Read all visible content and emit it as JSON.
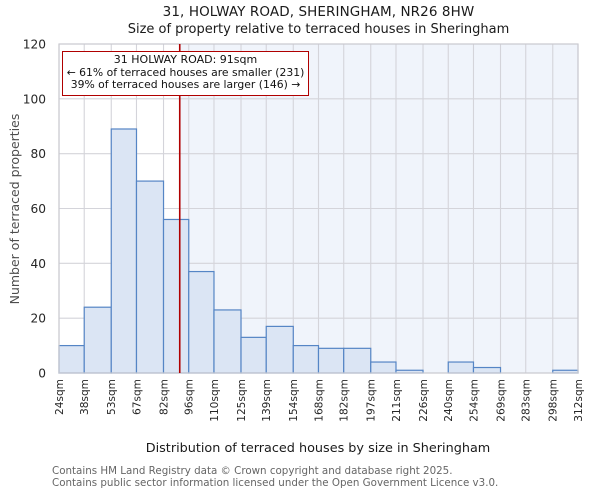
{
  "header": {
    "title": "31, HOLWAY ROAD, SHERINGHAM, NR26 8HW",
    "subtitle": "Size of property relative to terraced houses in Sheringham"
  },
  "annotation": {
    "line1": "31 HOLWAY ROAD: 91sqm",
    "line2": "← 61% of terraced houses are smaller (231)",
    "line3": "39% of terraced houses are larger (146) →"
  },
  "footer": {
    "line1": "Contains HM Land Registry data © Crown copyright and database right 2025.",
    "line2": "Contains public sector information licensed under the Open Government Licence v3.0."
  },
  "chart_data": {
    "type": "bar",
    "title": "31, HOLWAY ROAD, SHERINGHAM, NR26 8HW",
    "subtitle": "Size of property relative to terraced houses in Sheringham",
    "xlabel": "Distribution of terraced houses by size in Sheringham",
    "ylabel": "Number of terraced properties",
    "bin_edges_sqm": [
      24,
      38,
      53,
      67,
      82,
      96,
      110,
      125,
      139,
      154,
      168,
      182,
      197,
      211,
      226,
      240,
      254,
      269,
      283,
      298,
      312
    ],
    "x_tick_labels": [
      "24sqm",
      "38sqm",
      "53sqm",
      "67sqm",
      "82sqm",
      "96sqm",
      "110sqm",
      "125sqm",
      "139sqm",
      "154sqm",
      "168sqm",
      "182sqm",
      "197sqm",
      "211sqm",
      "226sqm",
      "240sqm",
      "254sqm",
      "269sqm",
      "283sqm",
      "298sqm",
      "312sqm"
    ],
    "values": [
      10,
      24,
      89,
      70,
      56,
      37,
      23,
      13,
      17,
      10,
      9,
      9,
      4,
      1,
      0,
      4,
      2,
      0,
      0,
      1
    ],
    "yticks": [
      0,
      20,
      40,
      60,
      80,
      100,
      120
    ],
    "ylim": [
      0,
      120
    ],
    "xlim_sqm": [
      24,
      312
    ],
    "grid": true,
    "marker_value_sqm": 91,
    "marker_label": "31 HOLWAY ROAD: 91sqm",
    "smaller_pct": 61,
    "smaller_count": 231,
    "larger_pct": 39,
    "larger_count": 146,
    "colors": {
      "bar_fill": "#dbe5f4",
      "bar_edge": "#5585c5",
      "marker_red": "#b00000",
      "grid": "#d4d4da",
      "plot_border": "#c9c9cf",
      "shade_right_of_marker": "#f0f4fb",
      "text_dark": "#262626",
      "text_gray": "#666666"
    }
  }
}
